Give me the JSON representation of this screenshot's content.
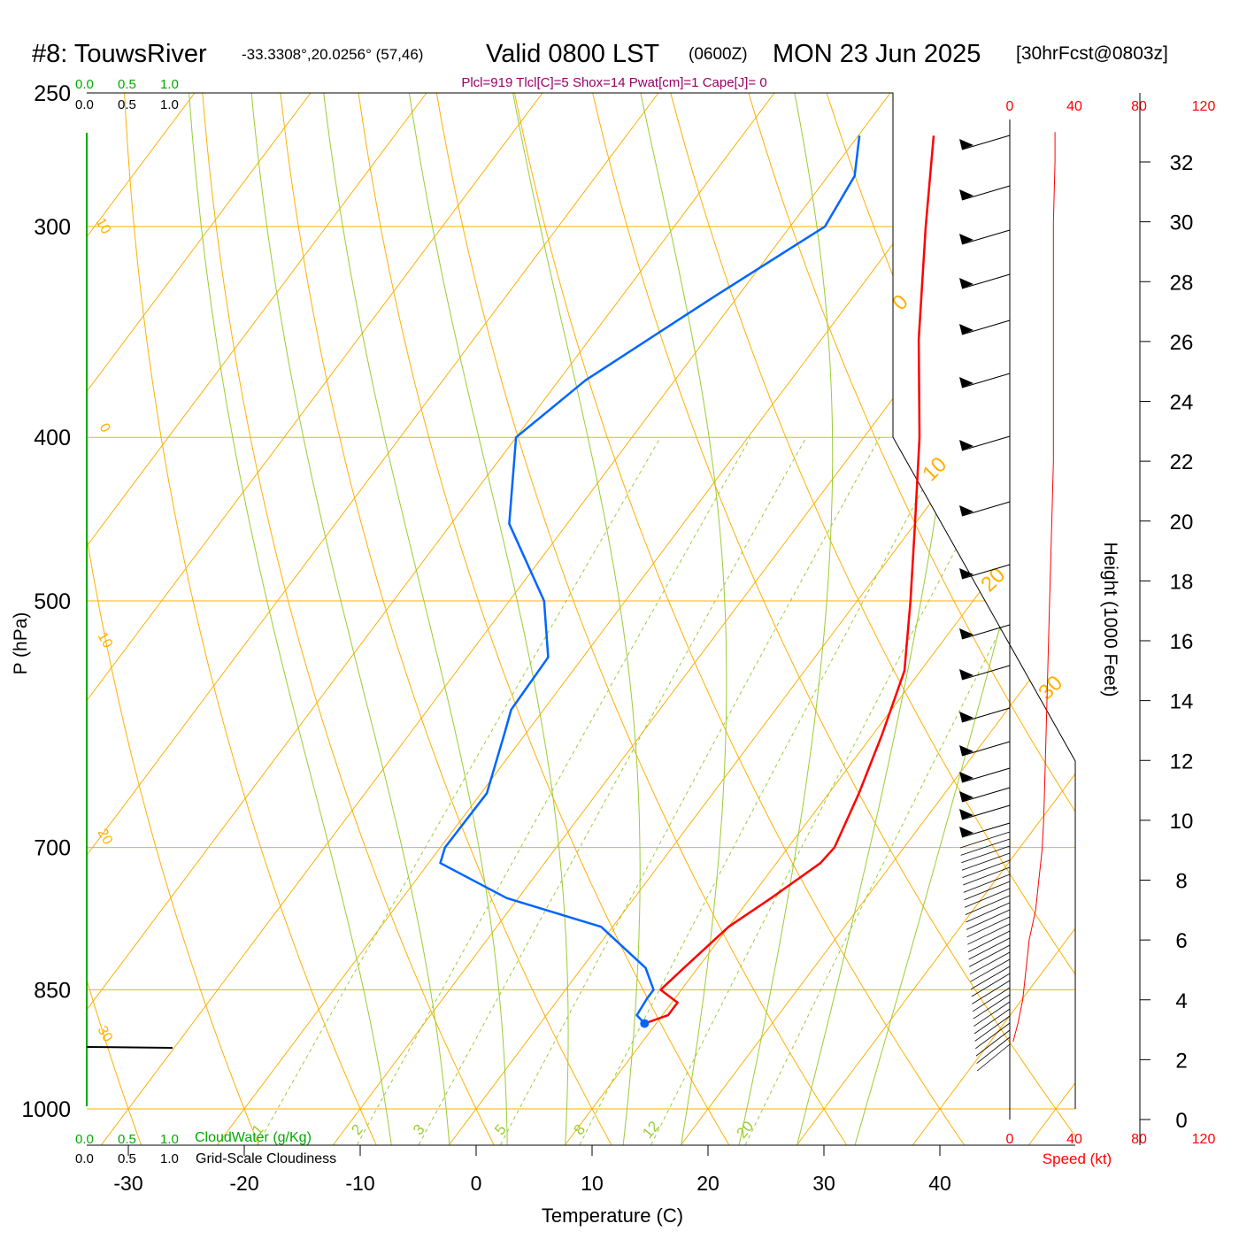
{
  "header": {
    "station": "#8: TouwsRiver",
    "coords": "-33.3308°,20.0256° (57,46)",
    "valid": "Valid 0800 LST",
    "zulu": "(0600Z)",
    "date": "MON 23 Jun 2025",
    "forecast": "[30hrFcst@0803z]",
    "indices": "Plcl=919 Tlcl[C]=5 Shox=14 Pwat[cm]=1 Cape[J]= 0"
  },
  "colors": {
    "temperature": "#ff0000",
    "dewpoint": "#0066ff",
    "isotherm_isobar": "#ffb000",
    "dry_adiabat": "#ffb000",
    "moist_adiabat": "#99cc33",
    "mixing_ratio": "#99cc33",
    "cloudwater_axis": "#00aa00",
    "speed": "#ff0000"
  },
  "legend": {
    "top_green_ticks": [
      "0.0",
      "0.5",
      "1.0"
    ],
    "top_black_ticks": [
      "0.0",
      "0.5",
      "1.0"
    ],
    "bottom_green_ticks": [
      "0.0",
      "0.5",
      "1.0"
    ],
    "bottom_black_ticks": [
      "0.0",
      "0.5",
      "1.0"
    ],
    "cloudwater_label": "CloudWater (g/Kg)",
    "cloudiness_label": "Grid-Scale Cloudiness"
  },
  "speed_axis": {
    "ticks": [
      "0",
      "40",
      "80",
      "120"
    ],
    "label": "Speed (kt)"
  },
  "height_axis": {
    "label": "Height (1000 Feet)",
    "ticks": [
      "0",
      "2",
      "4",
      "6",
      "8",
      "10",
      "12",
      "14",
      "16",
      "18",
      "20",
      "22",
      "24",
      "26",
      "28",
      "30",
      "32"
    ]
  },
  "chart_data": {
    "type": "line",
    "subtype": "skew-t log-p sounding",
    "xlabel": "Temperature (C)",
    "ylabel": "P (hPa)",
    "x_ticks": [
      -30,
      -20,
      -10,
      0,
      10,
      20,
      30,
      40
    ],
    "y_ticks": [
      250,
      300,
      400,
      500,
      700,
      850,
      1000
    ],
    "xlim": [
      -33,
      45
    ],
    "ylim": [
      1000,
      250
    ],
    "dry_adiabat_labels": [
      "30",
      "20",
      "10",
      "0",
      "-10",
      "-20",
      "-30",
      "0",
      "10",
      "20",
      "30"
    ],
    "mixing_ratio_labels": [
      "1",
      "2",
      "3",
      "5",
      "8",
      "12",
      "20"
    ],
    "series": [
      {
        "name": "Temperature",
        "pressure": [
          890,
          880,
          865,
          850,
          825,
          780,
          750,
          715,
          700,
          650,
          600,
          550,
          500,
          450,
          400,
          350,
          300,
          265
        ],
        "temperature": [
          9.0,
          10.5,
          10.5,
          8.2,
          8.8,
          10.0,
          11.8,
          13.8,
          14.0,
          12.6,
          10.8,
          8.6,
          4.6,
          0.0,
          -5.2,
          -11.6,
          -18.3,
          -23.5
        ]
      },
      {
        "name": "Dewpoint",
        "pressure": [
          890,
          880,
          860,
          850,
          825,
          780,
          750,
          715,
          700,
          650,
          600,
          580,
          540,
          500,
          450,
          400,
          370,
          330,
          300,
          280,
          265
        ],
        "temperature": [
          9.0,
          7.8,
          7.6,
          7.6,
          5.5,
          -1.0,
          -11.0,
          -19.0,
          -19.6,
          -19.5,
          -21.8,
          -22.8,
          -23.0,
          -27.0,
          -35.0,
          -40.0,
          -37.7,
          -32.0,
          -27.0,
          -27.7,
          -29.9
        ]
      }
    ],
    "annotations": [
      "LCL marker at ~890 hPa, 9 C"
    ],
    "wind_speed_profile": {
      "height_kft": [
        2.6,
        3.2,
        4.0,
        5.0,
        6.0,
        7.0,
        8.0,
        9.0,
        10.0,
        12.0,
        14.0,
        16.0,
        18.0,
        20.0,
        22.0,
        24.0,
        26.0,
        28.0,
        30.0,
        32.0,
        33.0
      ],
      "speed_kt": [
        2,
        5,
        8,
        10,
        12,
        16,
        18,
        20,
        21,
        22,
        23,
        24,
        25,
        26,
        27,
        27,
        27,
        27,
        27,
        28,
        28
      ]
    }
  }
}
